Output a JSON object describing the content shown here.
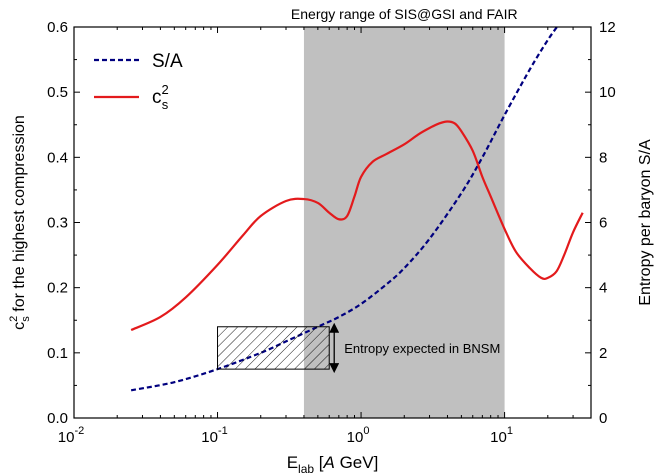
{
  "chart_data": {
    "type": "line",
    "title": "Energy range of SIS@GSI and FAIR",
    "xlabel": {
      "main": "E",
      "sub": "lab",
      "open": " [",
      "italic": "A",
      "unit": " GeV]"
    },
    "ylabel_left": {
      "pre": "c",
      "sup": "2",
      "sub": "s",
      "post": " for the highest compression"
    },
    "ylabel_right": "Entropy per baryon S/A",
    "xscale": "log",
    "xlim": [
      0.01,
      40
    ],
    "ylim_left": [
      0.0,
      0.6
    ],
    "ylim_right": [
      0,
      12
    ],
    "xticks": [
      {
        "value": 0.01,
        "base": "10",
        "exp": "-2"
      },
      {
        "value": 0.1,
        "base": "10",
        "exp": "-1"
      },
      {
        "value": 1,
        "base": "10",
        "exp": "0"
      },
      {
        "value": 10,
        "base": "10",
        "exp": "1"
      }
    ],
    "yticks_left": [
      {
        "value": 0.0,
        "label": "0.0"
      },
      {
        "value": 0.1,
        "label": "0.1"
      },
      {
        "value": 0.2,
        "label": "0.2"
      },
      {
        "value": 0.3,
        "label": "0.3"
      },
      {
        "value": 0.4,
        "label": "0.4"
      },
      {
        "value": 0.5,
        "label": "0.5"
      },
      {
        "value": 0.6,
        "label": "0.6"
      }
    ],
    "yticks_right": [
      {
        "value": 0,
        "label": "0"
      },
      {
        "value": 2,
        "label": "2"
      },
      {
        "value": 4,
        "label": "4"
      },
      {
        "value": 6,
        "label": "6"
      },
      {
        "value": 8,
        "label": "8"
      },
      {
        "value": 10,
        "label": "10"
      },
      {
        "value": 12,
        "label": "12"
      }
    ],
    "shaded_region": {
      "x": [
        0.4,
        10
      ],
      "color": "#c0c0c0"
    },
    "legend_position": "top-left",
    "series": [
      {
        "name": "S/A",
        "axis": "right",
        "style": "dashed",
        "color": "#00007f",
        "x": [
          0.025,
          0.05,
          0.1,
          0.2,
          0.3,
          0.5,
          0.7,
          1.0,
          1.5,
          2,
          3,
          5,
          7,
          10,
          15,
          20,
          25
        ],
        "y": [
          0.85,
          1.1,
          1.5,
          2.0,
          2.35,
          2.8,
          3.1,
          3.5,
          4.1,
          4.6,
          5.5,
          6.9,
          8.0,
          9.3,
          10.7,
          11.6,
          12.2
        ]
      },
      {
        "name": "c_s^2",
        "legend_label": {
          "main": "c",
          "sup": "2",
          "sub": "s"
        },
        "axis": "left",
        "style": "solid",
        "color": "#e31a1c",
        "x": [
          0.025,
          0.04,
          0.06,
          0.1,
          0.15,
          0.2,
          0.3,
          0.4,
          0.5,
          0.6,
          0.7,
          0.8,
          0.9,
          1.0,
          1.2,
          1.5,
          2,
          2.5,
          3,
          3.5,
          4,
          4.5,
          5,
          6,
          7,
          8,
          10,
          12,
          15,
          18,
          20,
          23,
          26,
          30,
          35
        ],
        "y": [
          0.135,
          0.155,
          0.185,
          0.235,
          0.28,
          0.31,
          0.333,
          0.336,
          0.33,
          0.315,
          0.305,
          0.31,
          0.34,
          0.37,
          0.393,
          0.405,
          0.42,
          0.435,
          0.445,
          0.452,
          0.455,
          0.452,
          0.44,
          0.41,
          0.37,
          0.34,
          0.29,
          0.255,
          0.23,
          0.215,
          0.215,
          0.225,
          0.25,
          0.285,
          0.315
        ]
      }
    ],
    "annotation": {
      "text": "Entropy expected in BNSM",
      "box": {
        "x": [
          0.1,
          0.6
        ],
        "y_right": [
          1.5,
          2.8
        ],
        "hatch": "diagonal"
      },
      "arrow_x": 0.65
    }
  }
}
